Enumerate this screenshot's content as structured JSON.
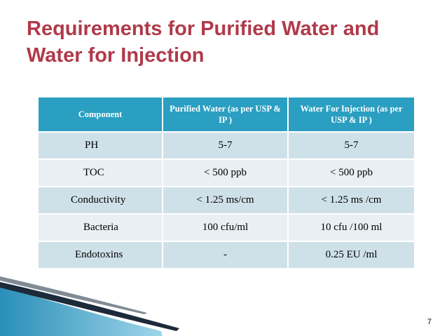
{
  "slide": {
    "title": "Requirements for Purified Water and Water for Injection",
    "page_number": "7"
  },
  "table": {
    "headers": [
      "Component",
      "Purified Water  (as per USP & IP )",
      "Water For Injection (as per USP & IP )"
    ],
    "rows": [
      [
        "PH",
        "5-7",
        "5-7"
      ],
      [
        "TOC",
        "< 500 ppb",
        "< 500 ppb"
      ],
      [
        "Conductivity",
        "< 1.25 ms/cm",
        "< 1.25 ms /cm"
      ],
      [
        "Bacteria",
        "100 cfu/ml",
        "10 cfu /100 ml"
      ],
      [
        "Endotoxins",
        "-",
        "0.25 EU /ml"
      ]
    ]
  },
  "colors": {
    "title": "#b03a4a",
    "header_bg": "#2b9fc1",
    "row_odd": "#cfe1e8",
    "row_even": "#e8f0f3"
  }
}
